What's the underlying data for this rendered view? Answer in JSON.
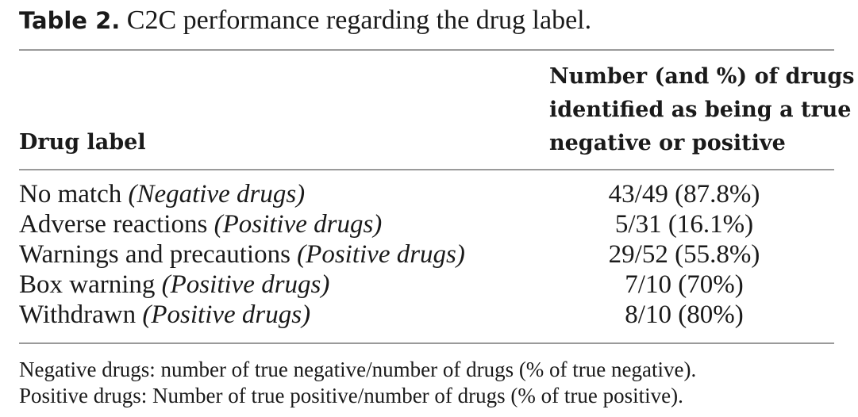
{
  "caption": {
    "label": "Table 2.",
    "text": " C2C performance regarding the drug label."
  },
  "table": {
    "headers": {
      "drug_label": "Drug label",
      "number_lines": [
        "Number (and %) of drugs",
        "identified as being a true",
        "negative or positive"
      ]
    },
    "rows": [
      {
        "label": "No match ",
        "qualifier": "(Negative drugs)",
        "value": "43/49 (87.8%)"
      },
      {
        "label": "Adverse reactions ",
        "qualifier": "(Positive drugs)",
        "value": "5/31 (16.1%)"
      },
      {
        "label": "Warnings and precautions ",
        "qualifier": "(Positive drugs)",
        "value": "29/52 (55.8%)"
      },
      {
        "label": "Box warning ",
        "qualifier": "(Positive drugs)",
        "value": "7/10 (70%)"
      },
      {
        "label": "Withdrawn ",
        "qualifier": "(Positive drugs)",
        "value": "8/10 (80%)"
      }
    ]
  },
  "footnotes": [
    "Negative drugs: number of true negative/number of drugs (% of true negative).",
    "Positive drugs: Number of true positive/number of drugs (% of true positive)."
  ]
}
